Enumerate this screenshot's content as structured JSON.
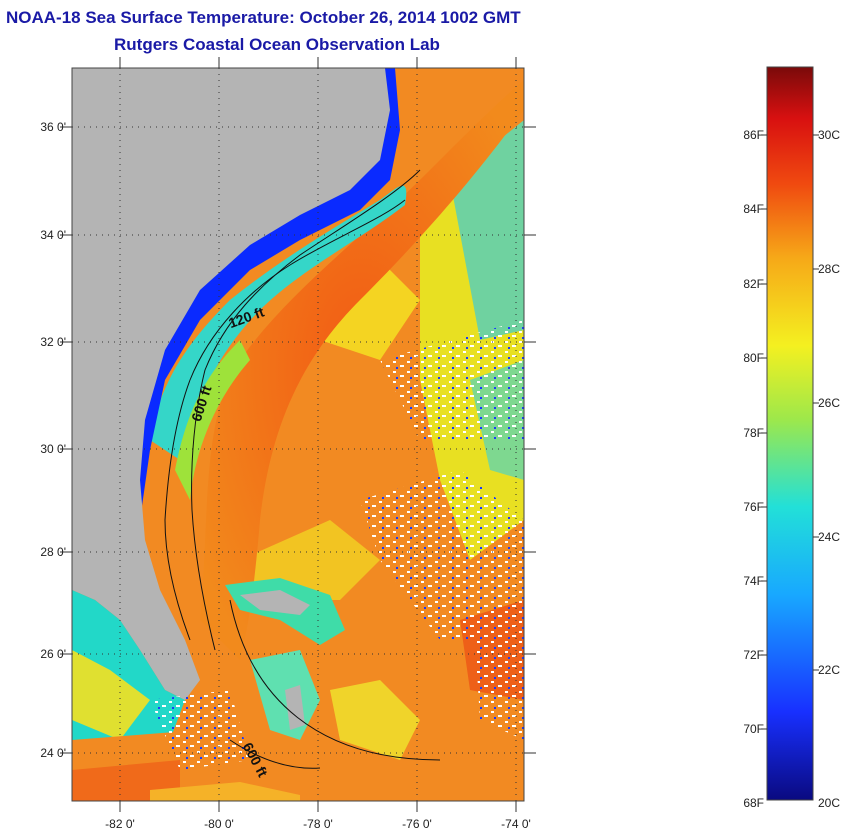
{
  "title": {
    "line1": "NOAA-18 Sea Surface Temperature:  October 26, 2014 1002 GMT",
    "line2": "Rutgers Coastal Ocean Observation Lab"
  },
  "map": {
    "lat_labels": [
      "36 0'",
      "34 0'",
      "32 0'",
      "30 0'",
      "28 0'",
      "26 0'",
      "24 0'"
    ],
    "lon_labels": [
      "-82 0'",
      "-80 0'",
      "-78 0'",
      "-76 0'",
      "-74 0'"
    ],
    "contour_labels": [
      "120 ft",
      "600 ft",
      "600 ft"
    ],
    "colors": {
      "land": "#b4b4b4",
      "coastal_cold": "#0a2aff",
      "shelf": "#35d6d0",
      "warm": "#f07a1c",
      "gulf_stream": "#f2681a",
      "mild": "#f2e21a",
      "cloud": "#ffffff"
    }
  },
  "colorbar": {
    "fahrenheit_labels": [
      "86F",
      "84F",
      "82F",
      "80F",
      "78F",
      "76F",
      "74F",
      "72F",
      "70F",
      "68F"
    ],
    "celsius_labels": [
      "30C",
      "28C",
      "26C",
      "24C",
      "22C",
      "20C"
    ]
  }
}
